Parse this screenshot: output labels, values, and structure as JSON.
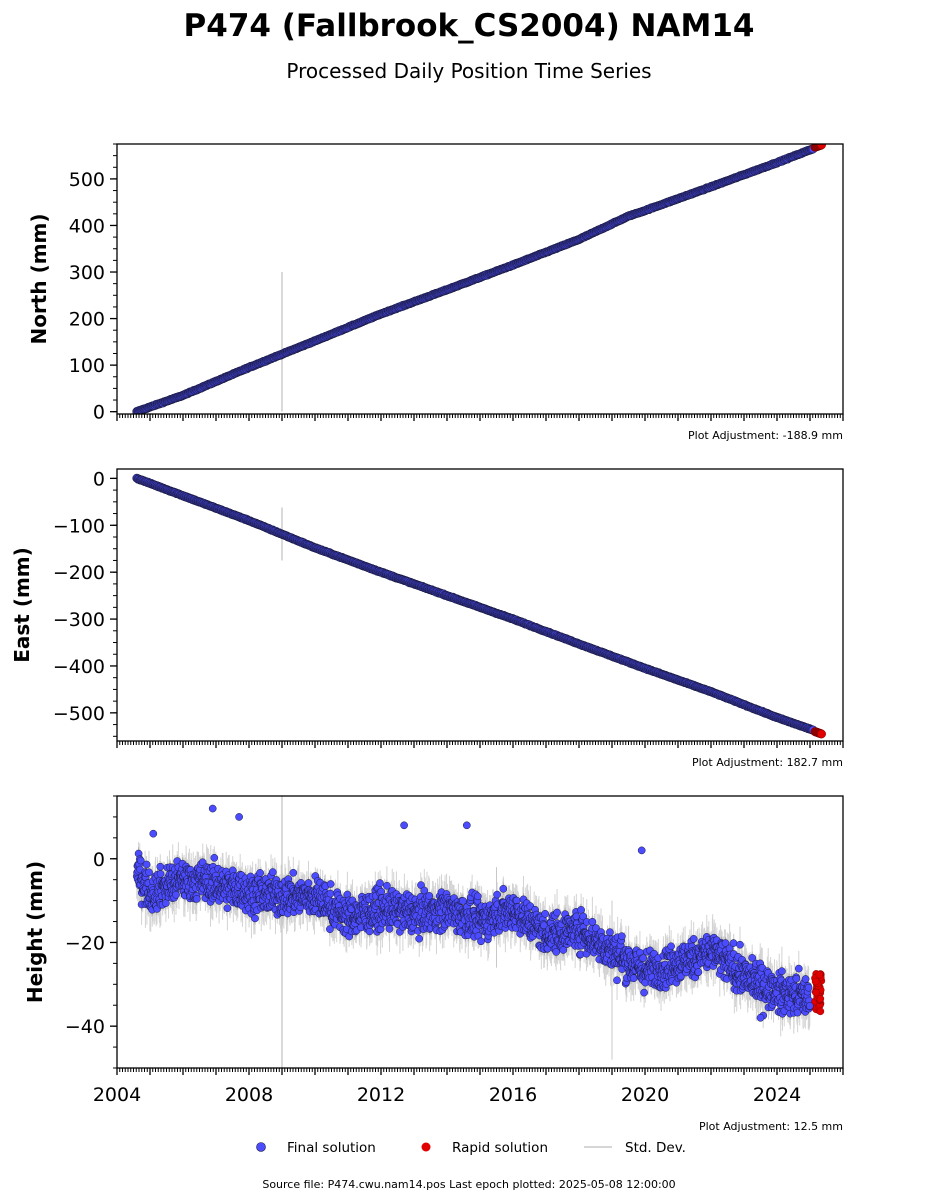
{
  "title": "P474 (Fallbrook_CS2004) NAM14",
  "subtitle": "Processed Daily Position Time Series",
  "footer": "Source file: P474.cwu.nam14.pos  Last epoch plotted: 2025-05-08 12:00:00",
  "colors": {
    "final": "#4b4bff",
    "final_edge": "#1a1a3a",
    "rapid": "#e00000",
    "stddev": "#b0b0b0"
  },
  "legend": {
    "position": "bottom-center",
    "items": [
      {
        "label": "Final solution",
        "color": "#4b4bff",
        "marker": "circle"
      },
      {
        "label": "Rapid solution",
        "color": "#e00000",
        "marker": "circle"
      },
      {
        "label": "Std. Dev.",
        "color": "#b0b0b0",
        "marker": "line"
      }
    ]
  },
  "chart_data": [
    {
      "type": "scatter",
      "ylabel": "North (mm)",
      "ylim": [
        -5,
        575
      ],
      "xlim": [
        2004.0,
        2026.0
      ],
      "yticks": [
        0,
        100,
        200,
        300,
        400,
        500
      ],
      "ytick_labels": [
        "0",
        "100",
        "200",
        "300",
        "400",
        "500"
      ],
      "adjustment": "Plot Adjustment: -188.9 mm",
      "series": [
        {
          "values": [
            [
              2004.6,
              0
            ],
            [
              2006.0,
              35
            ],
            [
              2008.0,
              95
            ],
            [
              2010.0,
              152
            ],
            [
              2012.0,
              210
            ],
            [
              2014.0,
              262
            ],
            [
              2016.0,
              315
            ],
            [
              2018.0,
              370
            ],
            [
              2019.5,
              420
            ],
            [
              2020.0,
              432
            ],
            [
              2022.0,
              483
            ],
            [
              2024.0,
              535
            ],
            [
              2025.1,
              565
            ]
          ]
        },
        {
          "values": [
            [
              2025.15,
              568
            ],
            [
              2025.35,
              573
            ]
          ]
        }
      ],
      "stddev_spike": {
        "x": 2009.0,
        "low": 0,
        "high": 300
      }
    },
    {
      "type": "scatter",
      "ylabel": "East (mm)",
      "ylim": [
        -560,
        20
      ],
      "xlim": [
        2004.0,
        2026.0
      ],
      "yticks": [
        0,
        -100,
        -200,
        -300,
        -400,
        -500
      ],
      "ytick_labels": [
        "0",
        "−100",
        "−200",
        "−300",
        "−400",
        "−500"
      ],
      "adjustment": "Plot Adjustment: 182.7 mm",
      "series": [
        {
          "values": [
            [
              2004.6,
              0
            ],
            [
              2006.0,
              -37
            ],
            [
              2008.0,
              -90
            ],
            [
              2010.0,
              -148
            ],
            [
              2012.0,
              -200
            ],
            [
              2014.0,
              -250
            ],
            [
              2016.0,
              -300
            ],
            [
              2018.0,
              -353
            ],
            [
              2020.0,
              -405
            ],
            [
              2022.0,
              -455
            ],
            [
              2024.0,
              -510
            ],
            [
              2025.1,
              -537
            ]
          ]
        },
        {
          "values": [
            [
              2025.15,
              -540
            ],
            [
              2025.35,
              -545
            ]
          ]
        }
      ],
      "stddev_spike": {
        "x": 2009.0,
        "low": -175,
        "high": -62
      }
    },
    {
      "type": "scatter",
      "ylabel": "Height (mm)",
      "ylim": [
        -50,
        15
      ],
      "xlim": [
        2004.0,
        2026.0
      ],
      "yticks": [
        0,
        -20,
        -40
      ],
      "ytick_labels": [
        "0",
        "−20",
        "−40"
      ],
      "xticks": [
        2004,
        2008,
        2012,
        2016,
        2020,
        2024
      ],
      "adjustment": "Plot Adjustment: 12.5 mm",
      "series": [
        {
          "values": [
            [
              2004.6,
              -3
            ],
            [
              2005.0,
              -8
            ],
            [
              2006.0,
              -5
            ],
            [
              2007.0,
              -6
            ],
            [
              2008.0,
              -8
            ],
            [
              2009.0,
              -9
            ],
            [
              2010.0,
              -9
            ],
            [
              2011.0,
              -14
            ],
            [
              2012.0,
              -12
            ],
            [
              2013.0,
              -13
            ],
            [
              2014.0,
              -12
            ],
            [
              2015.0,
              -15
            ],
            [
              2016.0,
              -12
            ],
            [
              2017.0,
              -18
            ],
            [
              2018.0,
              -17
            ],
            [
              2019.0,
              -22
            ],
            [
              2020.0,
              -27
            ],
            [
              2021.0,
              -25
            ],
            [
              2022.0,
              -22
            ],
            [
              2023.0,
              -28
            ],
            [
              2024.0,
              -32
            ],
            [
              2025.0,
              -33
            ]
          ]
        },
        {
          "values": [
            [
              2025.15,
              -28
            ],
            [
              2025.2,
              -31
            ],
            [
              2025.25,
              -33
            ],
            [
              2025.3,
              -35
            ],
            [
              2025.35,
              -36
            ]
          ]
        }
      ],
      "outliers": [
        [
          2006.9,
          12
        ],
        [
          2007.7,
          10
        ],
        [
          2012.7,
          8
        ],
        [
          2014.6,
          8
        ],
        [
          2019.9,
          2
        ],
        [
          2005.1,
          6
        ],
        [
          2023.5,
          -38
        ]
      ],
      "stddev_spike": {
        "x": 2009.0,
        "low": -50,
        "high": 15
      }
    }
  ]
}
